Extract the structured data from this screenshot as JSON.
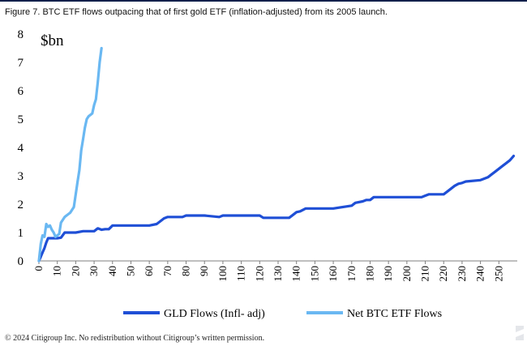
{
  "figure_title": "Figure 7. BTC ETF flows outpacing that of first gold ETF (inflation-adjusted) from its 2005 launch.",
  "footer": "© 2024 Citigroup Inc. No redistribution without Citigroup’s written permission.",
  "colors": {
    "gld": "#1f4fd6",
    "btc": "#6ab8f2",
    "rule": "#0b1f4b"
  },
  "chart_data": {
    "type": "line",
    "title": "",
    "ylabel": "$bn",
    "xlabel": "",
    "xlim": [
      0,
      260
    ],
    "ylim": [
      0,
      8
    ],
    "x_ticks": [
      0,
      10,
      20,
      30,
      40,
      50,
      60,
      70,
      80,
      90,
      100,
      110,
      120,
      130,
      140,
      150,
      160,
      170,
      180,
      190,
      200,
      210,
      220,
      230,
      240,
      250
    ],
    "y_ticks": [
      0,
      1,
      2,
      3,
      4,
      5,
      6,
      7,
      8
    ],
    "grid": false,
    "legend_position": "bottom",
    "series": [
      {
        "name": "GLD Flows (Infl- adj)",
        "color": "#1f4fd6",
        "x": [
          0,
          1,
          2,
          3,
          4,
          5,
          8,
          10,
          12,
          14,
          16,
          20,
          24,
          26,
          28,
          30,
          32,
          34,
          36,
          38,
          40,
          45,
          50,
          60,
          64,
          66,
          68,
          70,
          75,
          78,
          80,
          90,
          98,
          100,
          110,
          120,
          122,
          130,
          136,
          138,
          140,
          142,
          145,
          150,
          160,
          170,
          172,
          176,
          178,
          180,
          182,
          190,
          200,
          208,
          210,
          212,
          220,
          222,
          224,
          226,
          228,
          230,
          232,
          240,
          242,
          244,
          246,
          248,
          250,
          252,
          254,
          256,
          258
        ],
        "y": [
          0.0,
          0.15,
          0.3,
          0.45,
          0.65,
          0.8,
          0.8,
          0.8,
          0.82,
          1.0,
          1.0,
          1.0,
          1.05,
          1.05,
          1.05,
          1.05,
          1.15,
          1.1,
          1.12,
          1.12,
          1.25,
          1.25,
          1.25,
          1.25,
          1.3,
          1.4,
          1.5,
          1.55,
          1.55,
          1.55,
          1.6,
          1.6,
          1.55,
          1.6,
          1.6,
          1.6,
          1.52,
          1.52,
          1.52,
          1.62,
          1.72,
          1.75,
          1.85,
          1.85,
          1.85,
          1.95,
          2.05,
          2.1,
          2.15,
          2.15,
          2.25,
          2.25,
          2.25,
          2.25,
          2.3,
          2.35,
          2.35,
          2.45,
          2.55,
          2.65,
          2.72,
          2.75,
          2.8,
          2.85,
          2.9,
          2.95,
          3.05,
          3.15,
          3.25,
          3.35,
          3.45,
          3.55,
          3.7
        ]
      },
      {
        "name": "Net BTC ETF Flows",
        "color": "#6ab8f2",
        "x": [
          0,
          1,
          2,
          3,
          4,
          5,
          6,
          7,
          8,
          9,
          10,
          11,
          12,
          13,
          14,
          15,
          17,
          19,
          21,
          22,
          23,
          24,
          25,
          26,
          27,
          28,
          29,
          30,
          31,
          32,
          33,
          34
        ],
        "y": [
          0.0,
          0.6,
          0.9,
          0.85,
          1.3,
          1.2,
          1.25,
          1.1,
          1.0,
          0.85,
          0.9,
          0.95,
          1.35,
          1.45,
          1.55,
          1.6,
          1.7,
          1.9,
          2.8,
          3.2,
          3.9,
          4.3,
          4.7,
          5.0,
          5.1,
          5.15,
          5.2,
          5.5,
          5.7,
          6.3,
          7.0,
          7.5
        ]
      }
    ]
  }
}
